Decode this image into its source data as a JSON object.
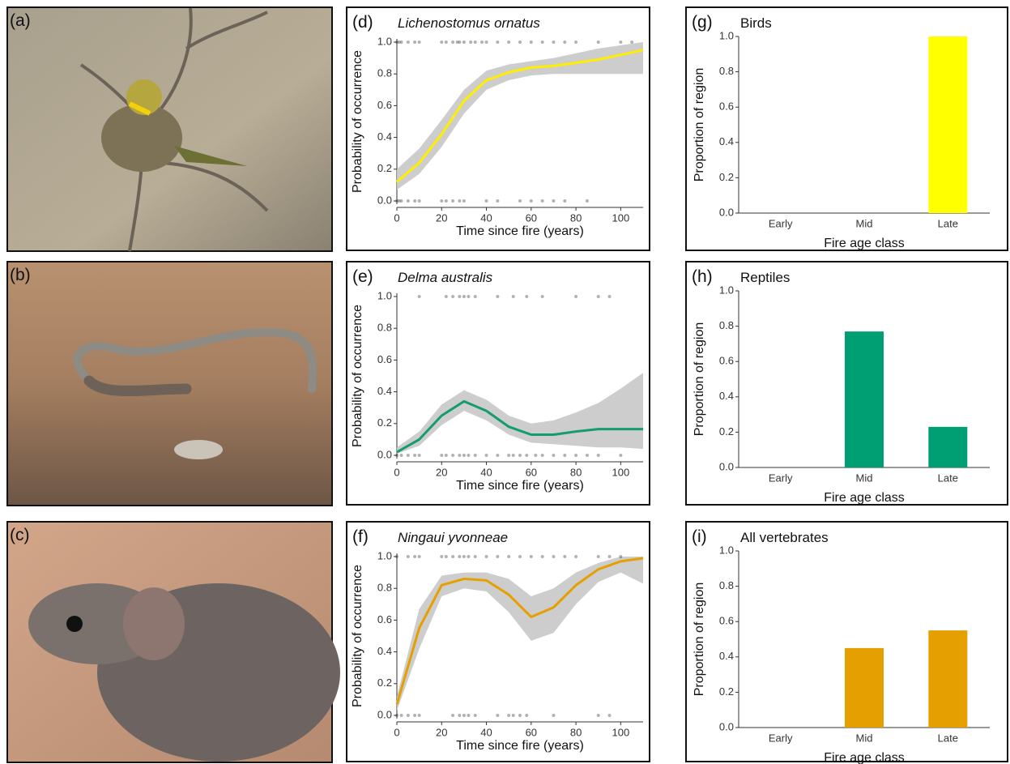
{
  "photos": [
    {
      "label": "(a)"
    },
    {
      "label": "(b)"
    },
    {
      "label": "(c)"
    }
  ],
  "chart_data": [
    {
      "type": "line",
      "panel": "(d)",
      "title": "Lichenostomus ornatus",
      "title_style": "italic",
      "xlabel": "Time since fire (years)",
      "ylabel": "Probability of occurrence",
      "color": "#ffee00",
      "x": [
        0,
        10,
        20,
        30,
        40,
        50,
        60,
        70,
        80,
        90,
        100,
        110
      ],
      "values": [
        0.12,
        0.24,
        0.42,
        0.63,
        0.76,
        0.81,
        0.84,
        0.85,
        0.87,
        0.89,
        0.92,
        0.95
      ],
      "lower": [
        0.07,
        0.17,
        0.34,
        0.55,
        0.7,
        0.76,
        0.79,
        0.8,
        0.8,
        0.8,
        0.8,
        0.8
      ],
      "upper": [
        0.2,
        0.33,
        0.51,
        0.7,
        0.82,
        0.86,
        0.88,
        0.9,
        0.93,
        0.96,
        0.98,
        1.0
      ],
      "points_x": [
        0,
        1,
        2,
        5,
        8,
        10,
        20,
        22,
        25,
        27,
        28,
        30,
        33,
        35,
        38,
        40,
        45,
        50,
        55,
        60,
        65,
        70,
        75,
        80,
        90,
        100,
        105,
        0,
        1,
        2,
        5,
        8,
        10,
        20,
        22,
        25,
        28,
        30,
        40,
        45,
        55,
        60,
        65,
        70,
        75,
        85
      ],
      "points_y": [
        1,
        1,
        1,
        1,
        1,
        1,
        1,
        1,
        1,
        1,
        1,
        1,
        1,
        1,
        1,
        1,
        1,
        1,
        1,
        1,
        1,
        1,
        1,
        1,
        1,
        1,
        1,
        0,
        0,
        0,
        0,
        0,
        0,
        0,
        0,
        0,
        0,
        0,
        0,
        0,
        0,
        0,
        0,
        0,
        0,
        0
      ],
      "xlim": [
        0,
        110
      ],
      "xticks": [
        0,
        20,
        40,
        60,
        80,
        100
      ],
      "ylim": [
        0,
        1
      ],
      "yticks": [
        {
          "value": 0,
          "label": "0.0"
        },
        0.2,
        0.4,
        0.6,
        0.8,
        {
          "value": 1,
          "label": "1.0"
        }
      ]
    },
    {
      "type": "line",
      "panel": "(e)",
      "title": "Delma australis",
      "title_style": "italic",
      "xlabel": "Time since fire (years)",
      "ylabel": "Probability of occurrence",
      "color": "#139c72",
      "x": [
        0,
        10,
        20,
        30,
        40,
        50,
        60,
        70,
        80,
        90,
        100,
        110
      ],
      "values": [
        0.02,
        0.1,
        0.25,
        0.34,
        0.28,
        0.18,
        0.13,
        0.13,
        0.15,
        0.165,
        0.165,
        0.165
      ],
      "lower": [
        0.01,
        0.06,
        0.19,
        0.28,
        0.22,
        0.13,
        0.08,
        0.07,
        0.06,
        0.05,
        0.05,
        0.04
      ],
      "upper": [
        0.05,
        0.15,
        0.32,
        0.41,
        0.35,
        0.25,
        0.2,
        0.22,
        0.27,
        0.33,
        0.42,
        0.52
      ],
      "points_x": [
        10,
        22,
        25,
        28,
        30,
        32,
        35,
        45,
        52,
        58,
        65,
        80,
        90,
        95,
        0,
        2,
        5,
        8,
        10,
        20,
        22,
        25,
        28,
        30,
        32,
        35,
        40,
        45,
        50,
        52,
        55,
        58,
        62,
        65,
        70,
        75,
        80,
        85,
        90,
        100
      ],
      "points_y": [
        1,
        1,
        1,
        1,
        1,
        1,
        1,
        1,
        1,
        1,
        1,
        1,
        1,
        1,
        0,
        0,
        0,
        0,
        0,
        0,
        0,
        0,
        0,
        0,
        0,
        0,
        0,
        0,
        0,
        0,
        0,
        0,
        0,
        0,
        0,
        0,
        0,
        0,
        0,
        0
      ],
      "xlim": [
        0,
        110
      ],
      "xticks": [
        0,
        20,
        40,
        60,
        80,
        100
      ],
      "ylim": [
        0,
        1
      ],
      "yticks": [
        {
          "value": 0,
          "label": "0.0"
        },
        0.2,
        0.4,
        0.6,
        0.8,
        {
          "value": 1,
          "label": "1.0"
        }
      ]
    },
    {
      "type": "line",
      "panel": "(f)",
      "title": "Ningaui yvonneae",
      "title_style": "italic",
      "xlabel": "Time since fire (years)",
      "ylabel": "Probability of occurrence",
      "color": "#e69f00",
      "x": [
        0,
        10,
        20,
        30,
        40,
        50,
        60,
        70,
        80,
        90,
        100,
        110
      ],
      "values": [
        0.07,
        0.55,
        0.82,
        0.86,
        0.85,
        0.76,
        0.62,
        0.68,
        0.82,
        0.92,
        0.97,
        0.99
      ],
      "lower": [
        0.03,
        0.42,
        0.75,
        0.8,
        0.78,
        0.65,
        0.47,
        0.52,
        0.7,
        0.84,
        0.9,
        0.83
      ],
      "upper": [
        0.12,
        0.67,
        0.88,
        0.9,
        0.9,
        0.86,
        0.75,
        0.8,
        0.9,
        0.96,
        1.0,
        1.0
      ],
      "points_x": [
        0,
        5,
        8,
        10,
        20,
        22,
        25,
        28,
        30,
        32,
        35,
        40,
        45,
        50,
        55,
        60,
        65,
        70,
        75,
        80,
        90,
        95,
        100,
        0,
        2,
        5,
        8,
        10,
        25,
        28,
        30,
        32,
        35,
        45,
        50,
        52,
        55,
        58,
        70,
        90,
        95
      ],
      "points_y": [
        1,
        1,
        1,
        1,
        1,
        1,
        1,
        1,
        1,
        1,
        1,
        1,
        1,
        1,
        1,
        1,
        1,
        1,
        1,
        1,
        1,
        1,
        1,
        0,
        0,
        0,
        0,
        0,
        0,
        0,
        0,
        0,
        0,
        0,
        0,
        0,
        0,
        0,
        0,
        0,
        0
      ],
      "xlim": [
        0,
        110
      ],
      "xticks": [
        0,
        20,
        40,
        60,
        80,
        100
      ],
      "ylim": [
        0,
        1
      ],
      "yticks": [
        {
          "value": 0,
          "label": "0.0"
        },
        0.2,
        0.4,
        0.6,
        0.8,
        {
          "value": 1,
          "label": "1.0"
        }
      ]
    },
    {
      "type": "bar",
      "panel": "(g)",
      "title": "Birds",
      "xlabel": "Fire age class",
      "ylabel": "Proportion of region",
      "color": "#ffff00",
      "categories": [
        "Early",
        "Mid",
        "Late"
      ],
      "values": [
        0,
        0,
        1
      ],
      "ylim": [
        0,
        1
      ],
      "yticks": [
        {
          "value": 0,
          "label": "0.0"
        },
        0.2,
        0.4,
        0.6,
        0.8,
        {
          "value": 1,
          "label": "1.0"
        }
      ]
    },
    {
      "type": "bar",
      "panel": "(h)",
      "title": "Reptiles",
      "xlabel": "Fire age class",
      "ylabel": "Proportion of region",
      "color": "#009e73",
      "categories": [
        "Early",
        "Mid",
        "Late"
      ],
      "values": [
        0,
        0.77,
        0.23
      ],
      "ylim": [
        0,
        1
      ],
      "yticks": [
        {
          "value": 0,
          "label": "0.0"
        },
        0.2,
        0.4,
        0.6,
        0.8,
        {
          "value": 1,
          "label": "1.0"
        }
      ]
    },
    {
      "type": "bar",
      "panel": "(i)",
      "title": "All vertebrates",
      "xlabel": "Fire age class",
      "ylabel": "Proportion of region",
      "color": "#e69f00",
      "categories": [
        "Early",
        "Mid",
        "Late"
      ],
      "values": [
        0,
        0.45,
        0.55
      ],
      "ylim": [
        0,
        1
      ],
      "yticks": [
        {
          "value": 0,
          "label": "0.0"
        },
        0.2,
        0.4,
        0.6,
        0.8,
        {
          "value": 1,
          "label": "1.0"
        }
      ]
    }
  ]
}
